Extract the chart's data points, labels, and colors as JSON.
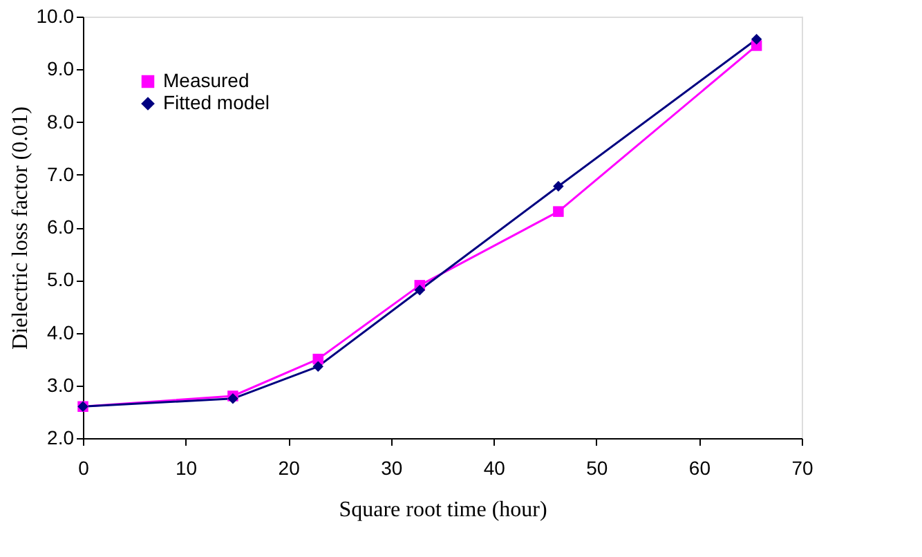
{
  "chart_data": {
    "type": "line",
    "xlabel": "Square root time (hour)",
    "ylabel": "Dielectric loss factor (0.01)",
    "x": [
      0,
      14.6,
      22.9,
      32.8,
      46.3,
      65.6
    ],
    "series": [
      {
        "name": "Measured",
        "color": "#ff00ff",
        "marker": "square",
        "values": [
          2.6,
          2.8,
          3.5,
          4.9,
          6.3,
          9.45
        ]
      },
      {
        "name": "Fitted model",
        "color": "#000080",
        "marker": "diamond",
        "values": [
          2.6,
          2.75,
          3.36,
          4.81,
          6.78,
          9.57
        ]
      }
    ],
    "xlim": [
      0,
      70
    ],
    "xticks": [
      0,
      10,
      20,
      30,
      40,
      50,
      60,
      70
    ],
    "ylim": [
      2,
      10
    ],
    "yticks": [
      {
        "value": 2,
        "label": "2.0"
      },
      {
        "value": 3,
        "label": "3.0"
      },
      {
        "value": 4,
        "label": "4.0"
      },
      {
        "value": 5,
        "label": "5.0"
      },
      {
        "value": 6,
        "label": "6.0"
      },
      {
        "value": 7,
        "label": "7.0"
      },
      {
        "value": 8,
        "label": "8.0"
      },
      {
        "value": 9,
        "label": "9.0"
      },
      {
        "value": 10,
        "label": "10.0"
      }
    ],
    "grid": false,
    "legend": "top left",
    "line_style": "solid"
  }
}
